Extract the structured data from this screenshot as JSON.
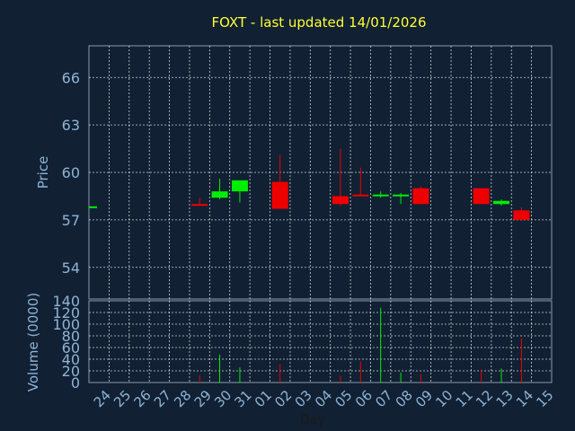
{
  "colors": {
    "background": "#112033",
    "title": "#ffff33",
    "axis_text": "#8eb4d6",
    "grid": "#ffffff",
    "up": "#00ee00",
    "down": "#ee0000"
  },
  "chart_data": [
    {
      "type": "candlestick",
      "title": "FOXT - last updated 14/01/2026",
      "ylabel": "Price",
      "ylim": [
        52,
        68
      ],
      "yticks": [
        54,
        57,
        60,
        63,
        66
      ],
      "grid": true,
      "x": [
        "24",
        "25",
        "26",
        "27",
        "28",
        "29",
        "30",
        "31",
        "01",
        "02",
        "03",
        "04",
        "05",
        "06",
        "07",
        "08",
        "09",
        "10",
        "11",
        "12",
        "13",
        "14",
        "15"
      ],
      "candles": [
        {
          "x": "24",
          "open": 57.8,
          "high": 57.8,
          "low": 57.8,
          "close": 57.8
        },
        {
          "x": "29",
          "open": 58.0,
          "high": 58.4,
          "low": 57.9,
          "close": 57.9
        },
        {
          "x": "30",
          "open": 58.4,
          "high": 59.6,
          "low": 58.3,
          "close": 58.8
        },
        {
          "x": "31",
          "open": 58.8,
          "high": 59.5,
          "low": 58.1,
          "close": 59.5
        },
        {
          "x": "02",
          "open": 59.4,
          "high": 61.1,
          "low": 57.7,
          "close": 57.7
        },
        {
          "x": "05",
          "open": 58.5,
          "high": 61.5,
          "low": 57.9,
          "close": 58.0
        },
        {
          "x": "06",
          "open": 58.6,
          "high": 60.3,
          "low": 58.5,
          "close": 58.5
        },
        {
          "x": "07",
          "open": 58.5,
          "high": 58.8,
          "low": 58.4,
          "close": 58.6
        },
        {
          "x": "08",
          "open": 58.5,
          "high": 58.7,
          "low": 58.0,
          "close": 58.6
        },
        {
          "x": "09",
          "open": 59.0,
          "high": 59.1,
          "low": 58.0,
          "close": 58.0
        },
        {
          "x": "12",
          "open": 59.0,
          "high": 59.0,
          "low": 58.0,
          "close": 58.0
        },
        {
          "x": "13",
          "open": 58.0,
          "high": 58.3,
          "low": 57.9,
          "close": 58.2
        },
        {
          "x": "14",
          "open": 57.6,
          "high": 57.8,
          "low": 57.0,
          "close": 57.0
        }
      ]
    },
    {
      "type": "bar",
      "ylabel": "Volume (0000)",
      "xlabel": "Day",
      "ylim": [
        0,
        140
      ],
      "yticks": [
        0,
        20,
        40,
        60,
        80,
        100,
        120,
        140
      ],
      "grid": true,
      "x": [
        "24",
        "25",
        "26",
        "27",
        "28",
        "29",
        "30",
        "31",
        "01",
        "02",
        "03",
        "04",
        "05",
        "06",
        "07",
        "08",
        "09",
        "10",
        "11",
        "12",
        "13",
        "14",
        "15"
      ],
      "bars": [
        {
          "x": "24",
          "value": 0,
          "direction": "up"
        },
        {
          "x": "29",
          "value": 12,
          "direction": "down"
        },
        {
          "x": "30",
          "value": 48,
          "direction": "up"
        },
        {
          "x": "31",
          "value": 26,
          "direction": "up"
        },
        {
          "x": "02",
          "value": 32,
          "direction": "down"
        },
        {
          "x": "05",
          "value": 12,
          "direction": "down"
        },
        {
          "x": "06",
          "value": 36,
          "direction": "down"
        },
        {
          "x": "07",
          "value": 128,
          "direction": "up"
        },
        {
          "x": "08",
          "value": 17,
          "direction": "up"
        },
        {
          "x": "09",
          "value": 14,
          "direction": "down"
        },
        {
          "x": "12",
          "value": 22,
          "direction": "down"
        },
        {
          "x": "13",
          "value": 24,
          "direction": "up"
        },
        {
          "x": "14",
          "value": 76,
          "direction": "down"
        }
      ]
    }
  ]
}
